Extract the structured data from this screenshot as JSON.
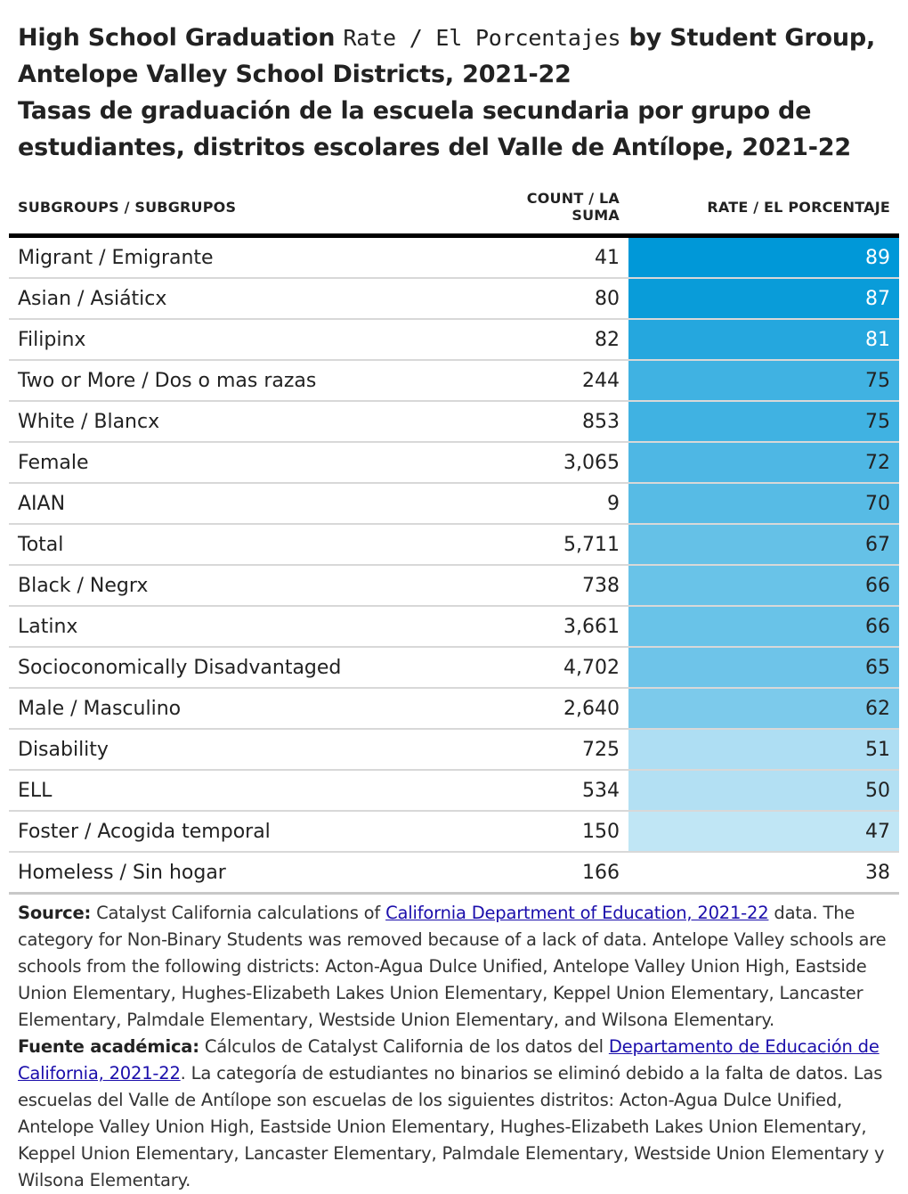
{
  "title": {
    "part1": "High School Graduation ",
    "part2_mono": "Rate / El Porcentajes",
    "part3": " by Student Group, Antelope Valley School Districts, 2021-22",
    "line2": "Tasas de graduación de la escuela secundaria por grupo de estudiantes, distritos escolares del Valle de Antílope, 2021-22"
  },
  "chart_data": {
    "type": "table",
    "columns": [
      "SUBGROUPS / SUBGRUPOS",
      "COUNT / LA SUMA",
      "RATE / EL PORCENTAJE"
    ],
    "rows": [
      {
        "group": "Migrant / Emigrante",
        "count": "41",
        "rate": 89
      },
      {
        "group": "Asian / Asiáticx",
        "count": "80",
        "rate": 87
      },
      {
        "group": "Filipinx",
        "count": "82",
        "rate": 81
      },
      {
        "group": "Two or More / Dos o mas razas",
        "count": "244",
        "rate": 75
      },
      {
        "group": "White / Blancx",
        "count": "853",
        "rate": 75
      },
      {
        "group": "Female",
        "count": "3,065",
        "rate": 72
      },
      {
        "group": "AIAN",
        "count": "9",
        "rate": 70
      },
      {
        "group": "Total",
        "count": "5,711",
        "rate": 67
      },
      {
        "group": "Black / Negrx",
        "count": "738",
        "rate": 66
      },
      {
        "group": "Latinx",
        "count": "3,661",
        "rate": 66
      },
      {
        "group": "Socioconomically Disadvantaged",
        "count": "4,702",
        "rate": 65
      },
      {
        "group": "Male / Masculino",
        "count": "2,640",
        "rate": 62
      },
      {
        "group": "Disability",
        "count": "725",
        "rate": 51
      },
      {
        "group": "ELL",
        "count": "534",
        "rate": 50
      },
      {
        "group": "Foster / Acogida temporal",
        "count": "150",
        "rate": 47
      },
      {
        "group": "Homeless / Sin hogar",
        "count": "166",
        "rate": 38
      }
    ],
    "rate_color_scale": {
      "low": "#ffffff",
      "high": "#0098d8"
    }
  },
  "notes": {
    "source_label": "Source:",
    "source_pre": " Catalyst California calculations of ",
    "source_link": "California Department of Education, 2021-22",
    "source_post": " data. The category for Non-Binary Students was removed because of a lack of data. Antelope Valley schools are schools from the following districts: Acton-Agua Dulce Unified, Antelope Valley Union High, Eastside Union Elementary, Hughes-Elizabeth Lakes Union Elementary, Keppel Union Elementary, Lancaster Elementary, Palmdale Elementary, Westside Union Elementary, and Wilsona Elementary.",
    "fuente_label": "Fuente académica:",
    "fuente_pre": " Cálculos de Catalyst California de los datos del ",
    "fuente_link": "Departamento de Educación de California, 2021-22",
    "fuente_post": ". La categoría de estudiantes no binarios se eliminó debido a la falta de datos. Las escuelas del Valle de Antílope son escuelas de los siguientes distritos: Acton-Agua Dulce Unified, Antelope Valley Union High, Eastside Union Elementary, Hughes-Elizabeth Lakes Union Elementary, Keppel Union Elementary, Lancaster Elementary, Palmdale Elementary, Westside Union Elementary y Wilsona Elementary."
  }
}
